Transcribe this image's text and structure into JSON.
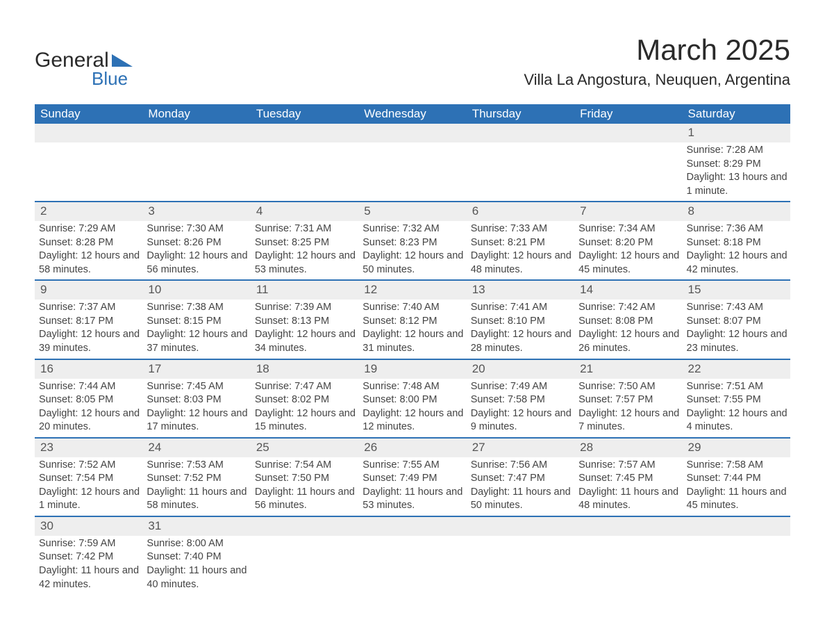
{
  "brand": {
    "word1": "General",
    "word2": "Blue",
    "tri_color": "#2d71b5"
  },
  "title": "March 2025",
  "location": "Villa La Angostura, Neuquen, Argentina",
  "colors": {
    "header_bg": "#2d71b5",
    "header_text": "#ffffff",
    "daynum_bg": "#eeeeee",
    "row_border": "#2d71b5",
    "body_text": "#444444"
  },
  "weekdays": [
    "Sunday",
    "Monday",
    "Tuesday",
    "Wednesday",
    "Thursday",
    "Friday",
    "Saturday"
  ],
  "weeks": [
    [
      {
        "day": "",
        "sunrise": "",
        "sunset": "",
        "daylight": ""
      },
      {
        "day": "",
        "sunrise": "",
        "sunset": "",
        "daylight": ""
      },
      {
        "day": "",
        "sunrise": "",
        "sunset": "",
        "daylight": ""
      },
      {
        "day": "",
        "sunrise": "",
        "sunset": "",
        "daylight": ""
      },
      {
        "day": "",
        "sunrise": "",
        "sunset": "",
        "daylight": ""
      },
      {
        "day": "",
        "sunrise": "",
        "sunset": "",
        "daylight": ""
      },
      {
        "day": "1",
        "sunrise": "Sunrise: 7:28 AM",
        "sunset": "Sunset: 8:29 PM",
        "daylight": "Daylight: 13 hours and 1 minute."
      }
    ],
    [
      {
        "day": "2",
        "sunrise": "Sunrise: 7:29 AM",
        "sunset": "Sunset: 8:28 PM",
        "daylight": "Daylight: 12 hours and 58 minutes."
      },
      {
        "day": "3",
        "sunrise": "Sunrise: 7:30 AM",
        "sunset": "Sunset: 8:26 PM",
        "daylight": "Daylight: 12 hours and 56 minutes."
      },
      {
        "day": "4",
        "sunrise": "Sunrise: 7:31 AM",
        "sunset": "Sunset: 8:25 PM",
        "daylight": "Daylight: 12 hours and 53 minutes."
      },
      {
        "day": "5",
        "sunrise": "Sunrise: 7:32 AM",
        "sunset": "Sunset: 8:23 PM",
        "daylight": "Daylight: 12 hours and 50 minutes."
      },
      {
        "day": "6",
        "sunrise": "Sunrise: 7:33 AM",
        "sunset": "Sunset: 8:21 PM",
        "daylight": "Daylight: 12 hours and 48 minutes."
      },
      {
        "day": "7",
        "sunrise": "Sunrise: 7:34 AM",
        "sunset": "Sunset: 8:20 PM",
        "daylight": "Daylight: 12 hours and 45 minutes."
      },
      {
        "day": "8",
        "sunrise": "Sunrise: 7:36 AM",
        "sunset": "Sunset: 8:18 PM",
        "daylight": "Daylight: 12 hours and 42 minutes."
      }
    ],
    [
      {
        "day": "9",
        "sunrise": "Sunrise: 7:37 AM",
        "sunset": "Sunset: 8:17 PM",
        "daylight": "Daylight: 12 hours and 39 minutes."
      },
      {
        "day": "10",
        "sunrise": "Sunrise: 7:38 AM",
        "sunset": "Sunset: 8:15 PM",
        "daylight": "Daylight: 12 hours and 37 minutes."
      },
      {
        "day": "11",
        "sunrise": "Sunrise: 7:39 AM",
        "sunset": "Sunset: 8:13 PM",
        "daylight": "Daylight: 12 hours and 34 minutes."
      },
      {
        "day": "12",
        "sunrise": "Sunrise: 7:40 AM",
        "sunset": "Sunset: 8:12 PM",
        "daylight": "Daylight: 12 hours and 31 minutes."
      },
      {
        "day": "13",
        "sunrise": "Sunrise: 7:41 AM",
        "sunset": "Sunset: 8:10 PM",
        "daylight": "Daylight: 12 hours and 28 minutes."
      },
      {
        "day": "14",
        "sunrise": "Sunrise: 7:42 AM",
        "sunset": "Sunset: 8:08 PM",
        "daylight": "Daylight: 12 hours and 26 minutes."
      },
      {
        "day": "15",
        "sunrise": "Sunrise: 7:43 AM",
        "sunset": "Sunset: 8:07 PM",
        "daylight": "Daylight: 12 hours and 23 minutes."
      }
    ],
    [
      {
        "day": "16",
        "sunrise": "Sunrise: 7:44 AM",
        "sunset": "Sunset: 8:05 PM",
        "daylight": "Daylight: 12 hours and 20 minutes."
      },
      {
        "day": "17",
        "sunrise": "Sunrise: 7:45 AM",
        "sunset": "Sunset: 8:03 PM",
        "daylight": "Daylight: 12 hours and 17 minutes."
      },
      {
        "day": "18",
        "sunrise": "Sunrise: 7:47 AM",
        "sunset": "Sunset: 8:02 PM",
        "daylight": "Daylight: 12 hours and 15 minutes."
      },
      {
        "day": "19",
        "sunrise": "Sunrise: 7:48 AM",
        "sunset": "Sunset: 8:00 PM",
        "daylight": "Daylight: 12 hours and 12 minutes."
      },
      {
        "day": "20",
        "sunrise": "Sunrise: 7:49 AM",
        "sunset": "Sunset: 7:58 PM",
        "daylight": "Daylight: 12 hours and 9 minutes."
      },
      {
        "day": "21",
        "sunrise": "Sunrise: 7:50 AM",
        "sunset": "Sunset: 7:57 PM",
        "daylight": "Daylight: 12 hours and 7 minutes."
      },
      {
        "day": "22",
        "sunrise": "Sunrise: 7:51 AM",
        "sunset": "Sunset: 7:55 PM",
        "daylight": "Daylight: 12 hours and 4 minutes."
      }
    ],
    [
      {
        "day": "23",
        "sunrise": "Sunrise: 7:52 AM",
        "sunset": "Sunset: 7:54 PM",
        "daylight": "Daylight: 12 hours and 1 minute."
      },
      {
        "day": "24",
        "sunrise": "Sunrise: 7:53 AM",
        "sunset": "Sunset: 7:52 PM",
        "daylight": "Daylight: 11 hours and 58 minutes."
      },
      {
        "day": "25",
        "sunrise": "Sunrise: 7:54 AM",
        "sunset": "Sunset: 7:50 PM",
        "daylight": "Daylight: 11 hours and 56 minutes."
      },
      {
        "day": "26",
        "sunrise": "Sunrise: 7:55 AM",
        "sunset": "Sunset: 7:49 PM",
        "daylight": "Daylight: 11 hours and 53 minutes."
      },
      {
        "day": "27",
        "sunrise": "Sunrise: 7:56 AM",
        "sunset": "Sunset: 7:47 PM",
        "daylight": "Daylight: 11 hours and 50 minutes."
      },
      {
        "day": "28",
        "sunrise": "Sunrise: 7:57 AM",
        "sunset": "Sunset: 7:45 PM",
        "daylight": "Daylight: 11 hours and 48 minutes."
      },
      {
        "day": "29",
        "sunrise": "Sunrise: 7:58 AM",
        "sunset": "Sunset: 7:44 PM",
        "daylight": "Daylight: 11 hours and 45 minutes."
      }
    ],
    [
      {
        "day": "30",
        "sunrise": "Sunrise: 7:59 AM",
        "sunset": "Sunset: 7:42 PM",
        "daylight": "Daylight: 11 hours and 42 minutes."
      },
      {
        "day": "31",
        "sunrise": "Sunrise: 8:00 AM",
        "sunset": "Sunset: 7:40 PM",
        "daylight": "Daylight: 11 hours and 40 minutes."
      },
      {
        "day": "",
        "sunrise": "",
        "sunset": "",
        "daylight": ""
      },
      {
        "day": "",
        "sunrise": "",
        "sunset": "",
        "daylight": ""
      },
      {
        "day": "",
        "sunrise": "",
        "sunset": "",
        "daylight": ""
      },
      {
        "day": "",
        "sunrise": "",
        "sunset": "",
        "daylight": ""
      },
      {
        "day": "",
        "sunrise": "",
        "sunset": "",
        "daylight": ""
      }
    ]
  ]
}
